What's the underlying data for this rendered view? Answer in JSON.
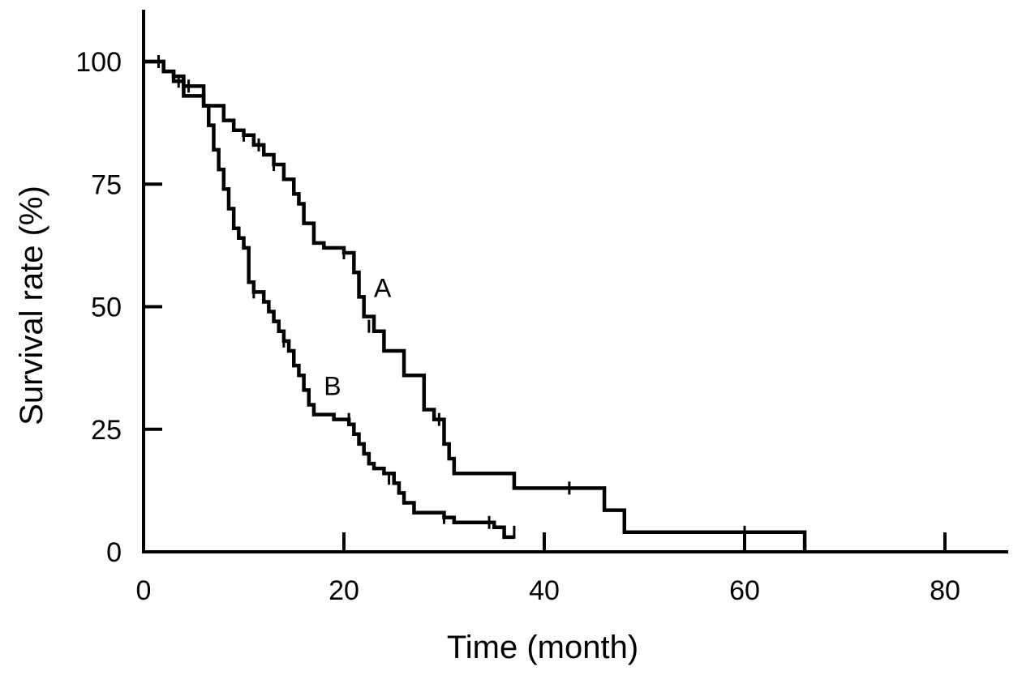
{
  "chart_data": {
    "type": "line",
    "title": "",
    "xlabel": "Time (month)",
    "ylabel": "Survival rate (%)",
    "xlim": [
      0,
      86
    ],
    "ylim": [
      0,
      110
    ],
    "xticks": [
      0,
      20,
      40,
      60,
      80
    ],
    "yticks": [
      0,
      25,
      50,
      75,
      100
    ],
    "grid": false,
    "series": [
      {
        "name": "A",
        "step": true,
        "color": "#000000",
        "x": [
          0,
          2,
          3,
          4,
          5,
          6,
          8,
          9,
          10,
          11,
          12,
          13,
          14,
          15,
          15.5,
          16,
          17,
          18,
          20,
          21,
          21.5,
          22,
          23,
          24,
          26,
          28,
          29,
          30,
          30.5,
          31,
          37,
          46,
          48,
          66
        ],
        "y": [
          100,
          98,
          96,
          93,
          93,
          91,
          88,
          86,
          85,
          83,
          81,
          79,
          76,
          73,
          71,
          67,
          63,
          62,
          61,
          57,
          52,
          48,
          45,
          41,
          36,
          29,
          27,
          22,
          19,
          16,
          13,
          8.5,
          4,
          0
        ],
        "censored": [
          [
            1.5,
            100
          ],
          [
            3,
            97
          ],
          [
            4.5,
            95
          ],
          [
            10,
            85
          ],
          [
            11.5,
            83
          ],
          [
            13,
            79
          ],
          [
            20,
            61
          ],
          [
            22.5,
            46
          ],
          [
            29.5,
            27
          ],
          [
            42.5,
            13
          ],
          [
            60,
            4
          ]
        ],
        "label_at": [
          23,
          52
        ]
      },
      {
        "name": "B",
        "step": true,
        "color": "#000000",
        "x": [
          0,
          2,
          3,
          4,
          5,
          6,
          6.5,
          7,
          7.5,
          8,
          8.5,
          9,
          9.5,
          10,
          10.5,
          11,
          12,
          12.5,
          13,
          13.5,
          14,
          14.5,
          15,
          15.5,
          16,
          16.5,
          17,
          19,
          20.5,
          21,
          21.5,
          22,
          22.5,
          23,
          24,
          25,
          25.5,
          26,
          27,
          28,
          30,
          31,
          35,
          36,
          37
        ],
        "y": [
          100,
          98,
          97,
          95,
          95,
          91,
          87,
          82,
          78,
          74,
          70,
          66,
          64,
          62,
          55,
          53,
          51,
          49,
          47,
          45,
          43,
          41,
          38,
          36,
          33,
          30,
          28,
          27,
          26,
          24,
          22,
          20,
          18,
          17,
          16,
          14,
          12,
          10,
          8,
          8,
          7,
          6,
          5,
          3,
          3
        ],
        "censored": [
          [
            1.5,
            100
          ],
          [
            3.5,
            96
          ],
          [
            11,
            53
          ],
          [
            14,
            43
          ],
          [
            20.5,
            27
          ],
          [
            24.5,
            15
          ],
          [
            30,
            7
          ],
          [
            34.5,
            6
          ],
          [
            37,
            4
          ]
        ],
        "label_at": [
          18,
          32
        ]
      }
    ]
  }
}
